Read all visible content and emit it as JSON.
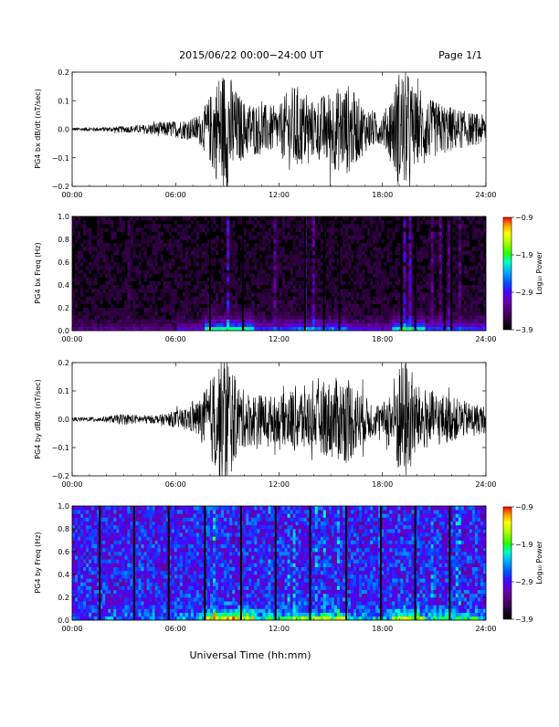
{
  "header": {
    "title": "2015/06/22  00:00−24:00 UT",
    "page": "Page 1/1"
  },
  "footer": {
    "xlabel": "Universal Time (hh:mm)"
  },
  "colors": {
    "trace": "#000000",
    "background": "#ffffff",
    "colormap": [
      "#000000",
      "#3a0050",
      "#6a00a8",
      "#4b00ff",
      "#0050ff",
      "#00b4ff",
      "#00ffc8",
      "#28ff00",
      "#b4ff00",
      "#ffff00",
      "#ffa000",
      "#ff0000"
    ]
  },
  "chart_data": [
    {
      "type": "line",
      "id": "bx-dbdt",
      "ylabel": "PG4 bx dB/dt (nT/sec)",
      "x_ticks": [
        "00:00",
        "06:00",
        "12:00",
        "18:00",
        "24:00"
      ],
      "x_range_hours": [
        0,
        24
      ],
      "ylim": [
        -0.2,
        0.2
      ],
      "y_ticks": [
        "0.2",
        "0.1",
        "0.0",
        "−0.1",
        "−0.2"
      ],
      "envelope": {
        "hours": [
          0,
          2,
          4,
          5,
          6,
          7,
          7.5,
          8,
          8.5,
          9,
          9.5,
          10,
          11,
          12,
          12.5,
          13,
          13.5,
          14,
          15,
          16,
          17,
          18,
          18.5,
          19,
          19.5,
          20,
          21,
          22,
          23,
          24
        ],
        "amplitude": [
          0.006,
          0.008,
          0.015,
          0.025,
          0.03,
          0.04,
          0.06,
          0.12,
          0.2,
          0.22,
          0.14,
          0.1,
          0.09,
          0.08,
          0.14,
          0.16,
          0.12,
          0.1,
          0.14,
          0.16,
          0.08,
          0.05,
          0.12,
          0.22,
          0.2,
          0.12,
          0.1,
          0.08,
          0.06,
          0.05
        ]
      }
    },
    {
      "type": "heatmap",
      "id": "bx-spectrogram",
      "ylabel": "PG4 bx Freq (Hz)",
      "x_ticks": [
        "00:00",
        "06:00",
        "12:00",
        "18:00",
        "24:00"
      ],
      "ylim": [
        0,
        1.0
      ],
      "y_ticks": [
        "1.0",
        "0.8",
        "0.6",
        "0.4",
        "0.2",
        "0.0"
      ],
      "colorbar": {
        "label": "Log₁₀ Power",
        "ticks": [
          "−0.9",
          "−1.9",
          "−2.9",
          "−3.9"
        ],
        "range": [
          -3.9,
          -0.9
        ]
      },
      "background_level": 0.02,
      "gap_lines_hours": [
        8.0,
        9.9,
        13.5,
        14.6,
        15.5,
        19.1,
        19.9,
        21.6,
        22.0
      ]
    },
    {
      "type": "line",
      "id": "by-dbdt",
      "ylabel": "PG4 by dB/dt (nT/sec)",
      "x_ticks": [
        "00:00",
        "06:00",
        "12:00",
        "18:00",
        "24:00"
      ],
      "x_range_hours": [
        0,
        24
      ],
      "ylim": [
        -0.2,
        0.2
      ],
      "y_ticks": [
        "0.2",
        "0.1",
        "0.0",
        "−0.1",
        "−0.2"
      ],
      "envelope": {
        "hours": [
          0,
          2,
          3,
          4,
          5,
          6,
          7,
          7.5,
          8,
          8.5,
          9,
          9.5,
          10,
          11,
          12,
          12.5,
          13,
          13.5,
          14,
          15,
          16,
          17,
          18,
          18.5,
          19,
          19.5,
          20,
          21,
          22,
          23,
          24
        ],
        "amplitude": [
          0.006,
          0.01,
          0.02,
          0.015,
          0.015,
          0.03,
          0.05,
          0.08,
          0.14,
          0.22,
          0.24,
          0.14,
          0.1,
          0.09,
          0.08,
          0.1,
          0.12,
          0.12,
          0.1,
          0.14,
          0.16,
          0.08,
          0.05,
          0.12,
          0.22,
          0.22,
          0.12,
          0.1,
          0.08,
          0.06,
          0.05
        ]
      }
    },
    {
      "type": "heatmap",
      "id": "by-spectrogram",
      "ylabel": "PG4 by Freq (Hz)",
      "x_ticks": [
        "00:00",
        "06:00",
        "12:00",
        "18:00",
        "24:00"
      ],
      "ylim": [
        0,
        1.0
      ],
      "y_ticks": [
        "1.0",
        "0.8",
        "0.6",
        "0.4",
        "0.2",
        "0.0"
      ],
      "colorbar": {
        "label": "Log₁₀ Power",
        "ticks": [
          "−0.9",
          "−1.9",
          "−2.9",
          "−3.9"
        ],
        "range": [
          -3.9,
          -0.9
        ]
      },
      "background_level": 0.16,
      "gap_lines_hours": [
        1.6,
        3.6,
        5.6,
        7.7,
        9.8,
        11.8,
        13.8,
        15.9,
        17.9,
        19.9,
        21.9
      ]
    }
  ]
}
